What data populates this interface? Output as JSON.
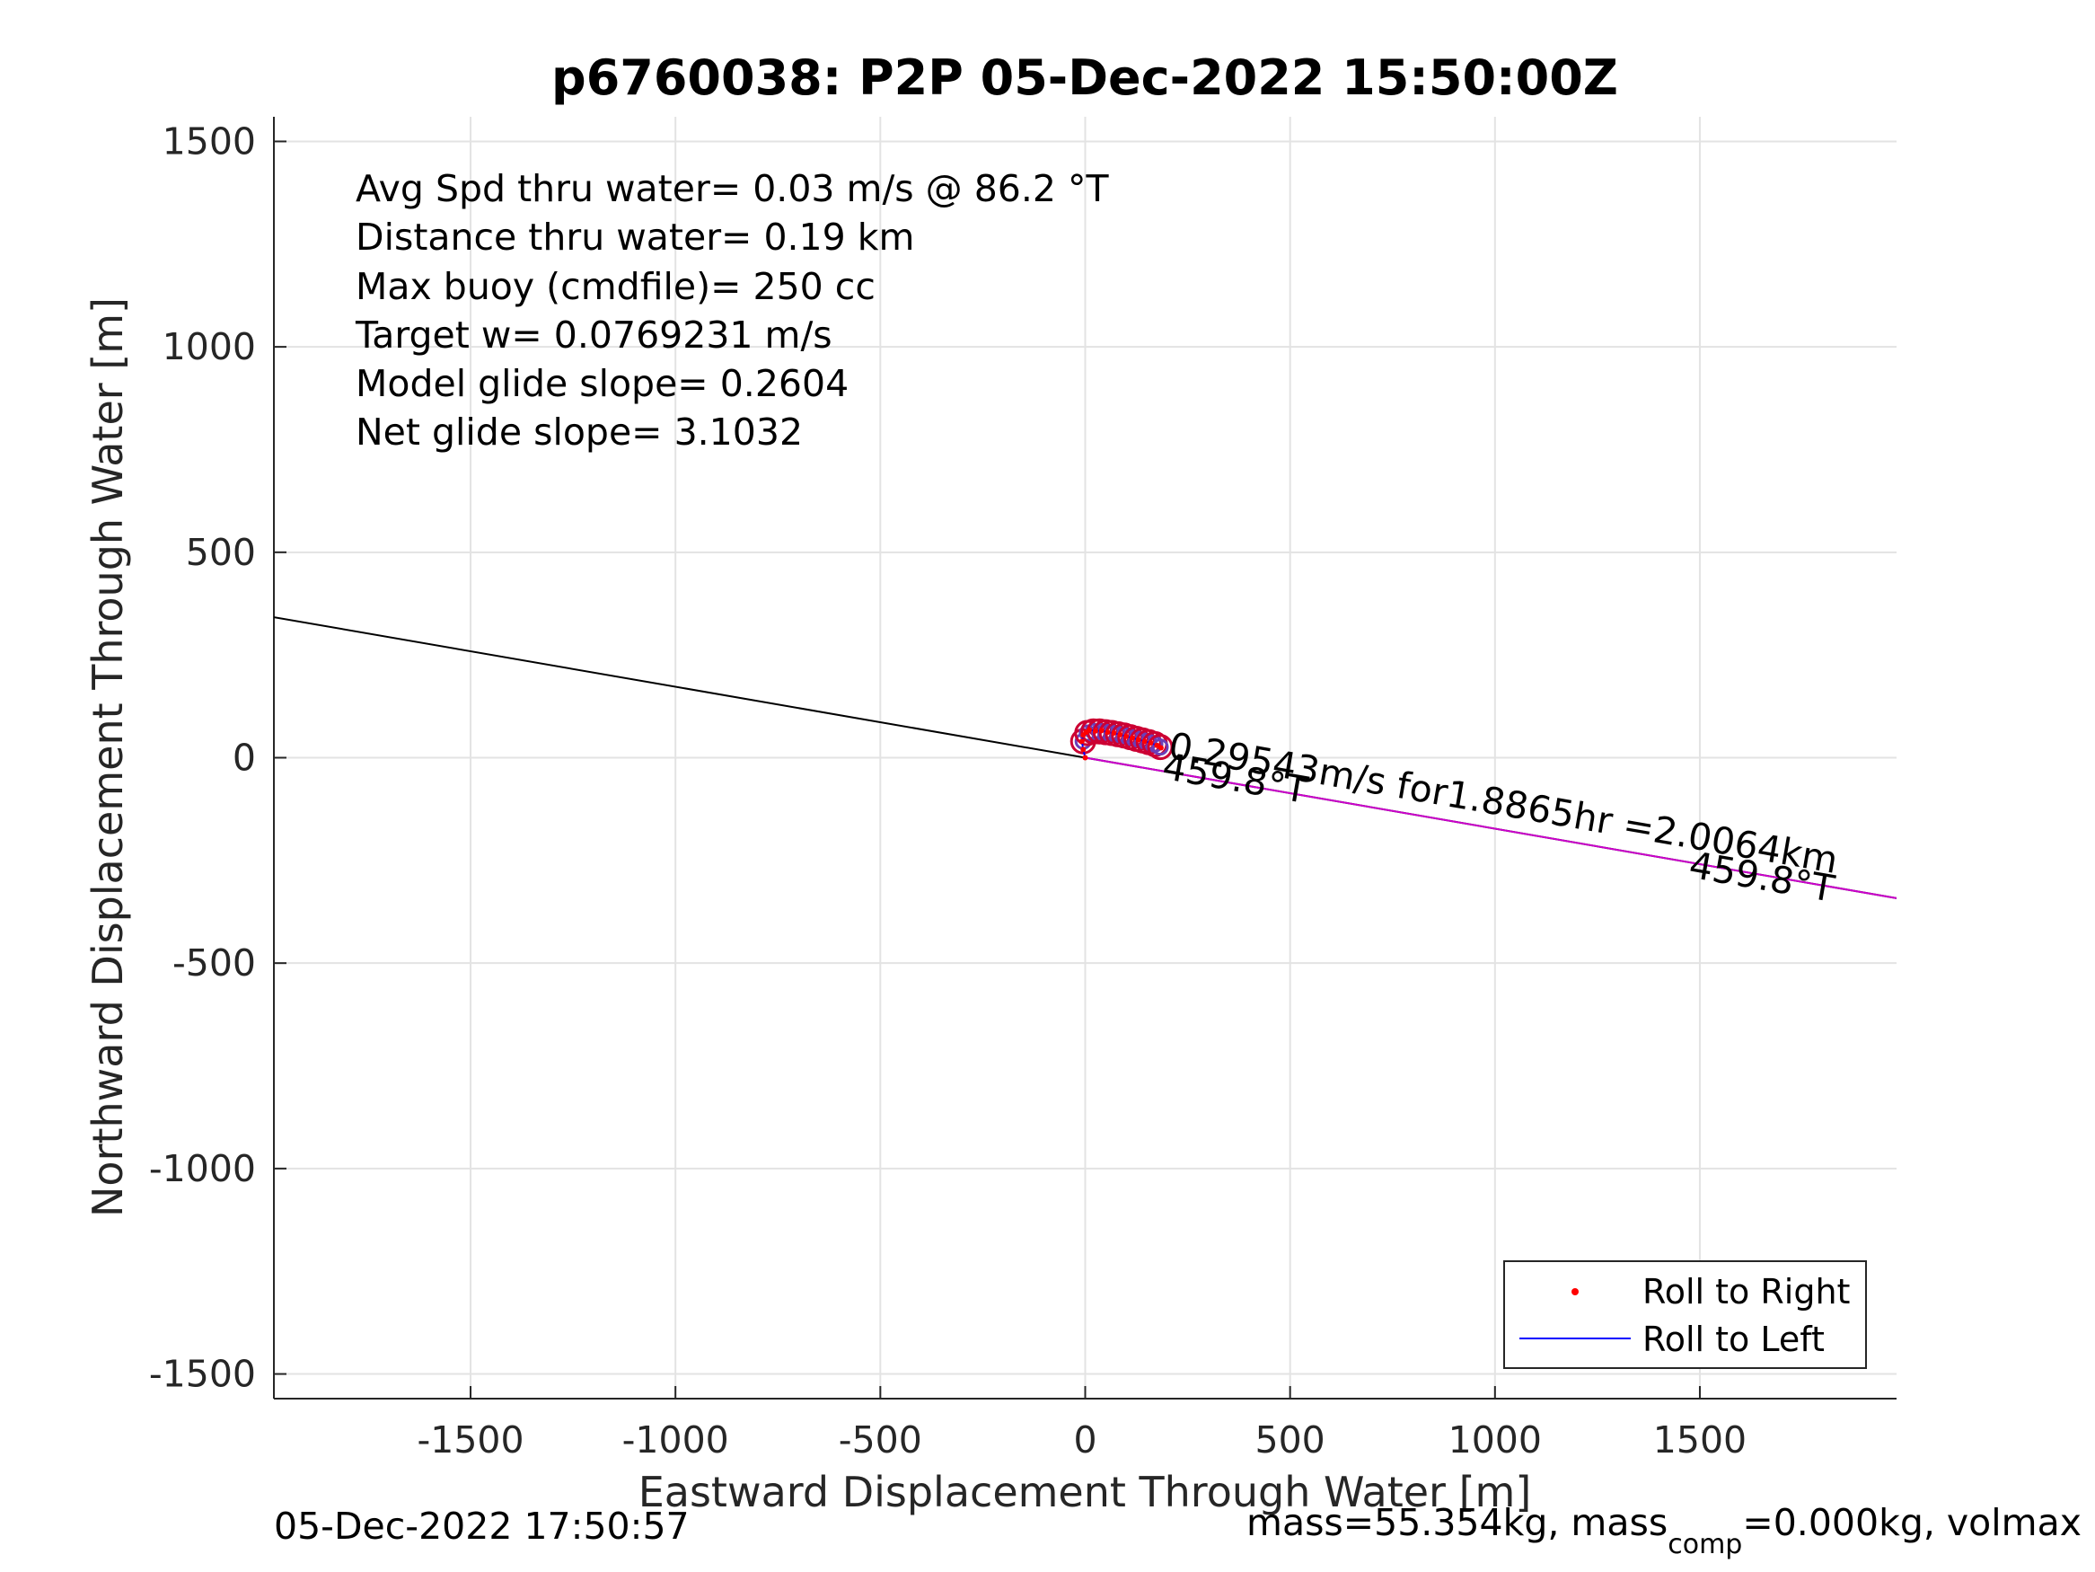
{
  "chart_data": {
    "type": "line",
    "title": "p6760038: P2P 05-Dec-2022 15:50:00Z",
    "xlabel": "Eastward Displacement Through Water [m]",
    "ylabel": "Northward Displacement Through Water [m]",
    "xlim": [
      -1980,
      1980
    ],
    "ylim": [
      -1560,
      1560
    ],
    "xticks": [
      -1500,
      -1000,
      -500,
      0,
      500,
      1000,
      1500
    ],
    "yticks": [
      -1500,
      -1000,
      -500,
      0,
      500,
      1000,
      1500
    ],
    "xtick_labels": [
      "-1500",
      "-1000",
      "-500",
      "0",
      "500",
      "1000",
      "1500"
    ],
    "ytick_labels": [
      "-1500",
      "-1000",
      "-500",
      "0",
      "500",
      "1000",
      "1500"
    ],
    "grid": true,
    "legend_position": "bottom-right",
    "info_lines": [
      "Avg Spd thru water=  0.03 m/s @  86.2 °T",
      "Distance thru water=  0.19 km",
      "Max buoy (cmdfile)= 250 cc",
      "Target w= 0.0769231 m/s",
      "Model glide slope= 0.2604",
      "Net glide slope= 3.1032"
    ],
    "series": [
      {
        "name": "Roll to Right",
        "marker": "dot",
        "color": "#ff0000",
        "points": [
          [
            0,
            0
          ],
          [
            -5,
            20
          ],
          [
            -8,
            40
          ],
          [
            -5,
            55
          ],
          [
            2,
            62
          ],
          [
            10,
            68
          ],
          [
            25,
            65
          ],
          [
            40,
            66
          ],
          [
            55,
            62
          ],
          [
            70,
            60
          ],
          [
            85,
            56
          ],
          [
            100,
            52
          ],
          [
            115,
            48
          ],
          [
            130,
            44
          ],
          [
            145,
            40
          ],
          [
            160,
            36
          ],
          [
            175,
            30
          ],
          [
            185,
            24
          ]
        ]
      },
      {
        "name": "Roll to Left",
        "marker": "line",
        "color": "#0000ff",
        "points": [
          [
            0,
            0
          ],
          [
            -5,
            20
          ],
          [
            -8,
            40
          ],
          [
            -5,
            55
          ],
          [
            2,
            62
          ],
          [
            10,
            68
          ],
          [
            25,
            65
          ],
          [
            40,
            66
          ],
          [
            55,
            62
          ],
          [
            70,
            60
          ],
          [
            85,
            56
          ],
          [
            100,
            52
          ],
          [
            115,
            48
          ],
          [
            130,
            44
          ],
          [
            145,
            40
          ],
          [
            160,
            36
          ],
          [
            175,
            30
          ],
          [
            185,
            24
          ]
        ]
      }
    ],
    "heading_line": {
      "color": "#000000",
      "from": [
        -1980,
        342
      ],
      "to": [
        1980,
        -342
      ]
    },
    "track_line": {
      "color": "#cc00cc",
      "from": [
        0,
        0
      ],
      "to": [
        1980,
        -342
      ]
    },
    "circle_markers": {
      "edge_color": "#cc0033",
      "fill_color": "#6a3fb8",
      "points": [
        [
          -5,
          40
        ],
        [
          5,
          60
        ],
        [
          20,
          64
        ],
        [
          35,
          64
        ],
        [
          50,
          62
        ],
        [
          65,
          60
        ],
        [
          80,
          57
        ],
        [
          95,
          54
        ],
        [
          110,
          50
        ],
        [
          125,
          46
        ],
        [
          140,
          42
        ],
        [
          155,
          38
        ],
        [
          170,
          33
        ],
        [
          183,
          26
        ]
      ]
    },
    "annotations": [
      {
        "text": "0.29543m/s for1.8865hr =2.0064km",
        "x": 200,
        "y": 0,
        "rotation": 9.8
      },
      {
        "text": "459.8°T",
        "x": 185,
        "y": -50,
        "rotation": 9.8
      },
      {
        "text": "459.8°T",
        "x": 1470,
        "y": -290,
        "rotation": 9.8
      }
    ]
  },
  "footer": {
    "timestamp": "05-Dec-2022 17:50:57",
    "mass_text_1": "mass=55.354kg, mass",
    "mass_subscript": "comp",
    "mass_text_2": "=0.000kg, volmax"
  }
}
